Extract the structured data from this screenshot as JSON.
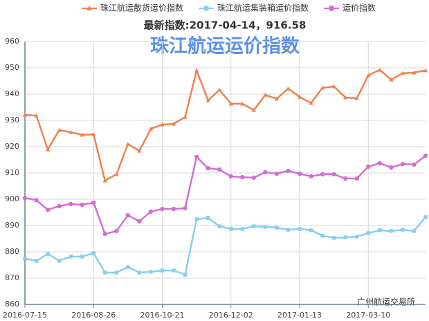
{
  "chart_data": {
    "type": "line",
    "title": "珠江航运运价指数",
    "subtitle": "最新指数:2017-04-14，916.58",
    "watermark": "广州航运交易所",
    "categories": [
      "2016-07-15",
      null,
      null,
      null,
      null,
      null,
      "2016-08-26",
      null,
      null,
      null,
      null,
      null,
      "2016-10-21",
      null,
      null,
      null,
      null,
      null,
      "2016-12-02",
      null,
      null,
      null,
      null,
      null,
      "2017-01-13",
      null,
      null,
      null,
      null,
      null,
      "2017-03-10",
      null,
      null,
      null,
      null,
      null
    ],
    "series": [
      {
        "name": "珠江航运散货运价指数",
        "color": "#f0824f",
        "marker": "triangle",
        "values": [
          932.1,
          931.8,
          918.9,
          926.3,
          925.5,
          924.5,
          924.7,
          907.1,
          909.5,
          921,
          918.4,
          926.8,
          928.4,
          928.7,
          931.3,
          949,
          937.6,
          941.6,
          936.3,
          936.3,
          933.9,
          939.7,
          938.2,
          942.1,
          938.9,
          936.6,
          942.4,
          942.9,
          938.7,
          938.4,
          947.1,
          949.2,
          945.5,
          947.9,
          948.2,
          949
        ]
      },
      {
        "name": "珠江航运集装箱运价指数",
        "color": "#88cef2",
        "marker": "square",
        "values": [
          877.4,
          876.6,
          879.2,
          876.6,
          878.2,
          878.2,
          879.5,
          872.1,
          872.1,
          874.2,
          872.1,
          872.4,
          872.9,
          872.9,
          871.3,
          892.4,
          892.9,
          889.7,
          888.7,
          888.7,
          889.7,
          889.5,
          889.2,
          888.4,
          888.7,
          888.2,
          886.1,
          885.3,
          885.5,
          885.8,
          887.1,
          888.2,
          887.9,
          888.4,
          887.9,
          893.2
        ]
      },
      {
        "name": "运价指数",
        "color": "#d36fd3",
        "marker": "circle",
        "values": [
          900.5,
          899.7,
          896,
          897.4,
          898.2,
          897.9,
          898.7,
          886.8,
          887.9,
          893.9,
          891.6,
          895.3,
          896.3,
          896.3,
          896.6,
          916.1,
          911.8,
          911.3,
          908.7,
          908.4,
          908.2,
          910.3,
          909.7,
          910.8,
          909.7,
          908.7,
          909.5,
          909.5,
          907.9,
          907.9,
          912.4,
          913.7,
          912.1,
          913.4,
          913.2,
          916.58
        ]
      }
    ],
    "ylim": [
      860,
      960
    ],
    "yticks": [
      860,
      870,
      880,
      890,
      900,
      910,
      920,
      930,
      940,
      950,
      960
    ],
    "grid": true,
    "legend": "top"
  }
}
